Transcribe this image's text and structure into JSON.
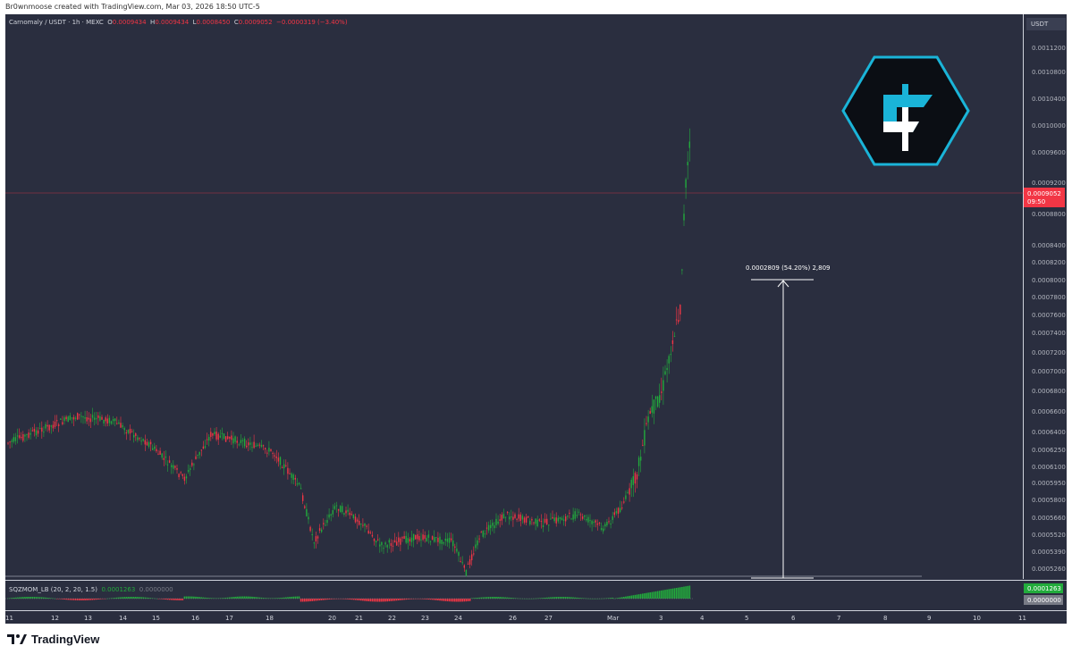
{
  "header": {
    "attribution": "Br0wnmoose created with TradingView.com, Mar 03, 2026 18:50 UTC-5"
  },
  "legend": {
    "symbol": "Carnomaly / USDT · 1h · MEXC",
    "o_label": "O",
    "o": "0.0009434",
    "h_label": "H",
    "h": "0.0009434",
    "l_label": "L",
    "l": "0.0008450",
    "c_label": "C",
    "c": "0.0009052",
    "change": "−0.0000319 (−3.40%)"
  },
  "price_axis": {
    "currency": "USDT",
    "ticks": [
      "0.0011200",
      "0.0010800",
      "0.0010400",
      "0.0010000",
      "0.0009600",
      "0.0009200",
      "0.0008800",
      "0.0008400",
      "0.0008200",
      "0.0008000",
      "0.0007800",
      "0.0007600",
      "0.0007400",
      "0.0007200",
      "0.0007000",
      "0.0006800",
      "0.0006600",
      "0.0006400",
      "0.0006250",
      "0.0006100",
      "0.0005950",
      "0.0005800",
      "0.0005660",
      "0.0005520",
      "0.0005390",
      "0.0005260"
    ],
    "last_price": "0.0009052",
    "countdown": "09:50"
  },
  "measure_label": "0.0002809 (54.20%) 2,809",
  "indicator": {
    "name": "SQZMOM_LB (20, 2, 20, 1.5)",
    "value1": "0.0001263",
    "value2": "0.0000000",
    "axis_value1": "0.0001263",
    "axis_value2": "0.0000000"
  },
  "time_axis": {
    "labels": [
      "11",
      "12",
      "13",
      "14",
      "15",
      "16",
      "17",
      "18",
      "20",
      "21",
      "22",
      "23",
      "24",
      "26",
      "27",
      "Mar",
      "3",
      "4",
      "5",
      "6",
      "7",
      "8",
      "9",
      "10",
      "11"
    ]
  },
  "footer": {
    "brand": "TradingView"
  },
  "colors": {
    "bull": "#22ab3c",
    "bear": "#f23645",
    "background": "#2a2e3f",
    "logo_cyan": "#1ab4d8"
  },
  "icons": {
    "watermark": "carnomaly-logo-icon",
    "brand": "tradingview-logo-icon"
  }
}
